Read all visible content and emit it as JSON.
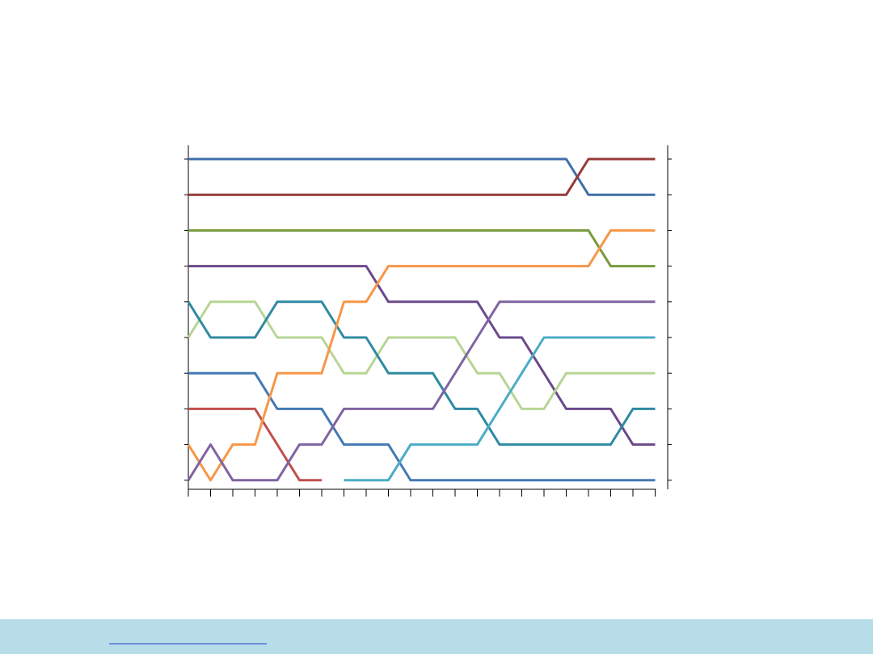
{
  "chart_data": {
    "type": "line",
    "title": "",
    "xlabel": "",
    "ylabel": "",
    "y_reversed": true,
    "ylim": [
      1,
      10
    ],
    "x": [
      1,
      2,
      3,
      4,
      5,
      6,
      7,
      8,
      9,
      10,
      11,
      12,
      13,
      14,
      15,
      16,
      17,
      18,
      19,
      20,
      21,
      22
    ],
    "grid": false,
    "legend": "none",
    "series": [
      {
        "color": "#3f6fa8",
        "values": [
          1,
          1,
          1,
          1,
          1,
          1,
          1,
          1,
          1,
          1,
          1,
          1,
          1,
          1,
          1,
          1,
          1,
          1,
          2,
          2,
          2,
          2
        ]
      },
      {
        "color": "#963a38",
        "values": [
          2,
          2,
          2,
          2,
          2,
          2,
          2,
          2,
          2,
          2,
          2,
          2,
          2,
          2,
          2,
          2,
          2,
          2,
          1,
          1,
          1,
          1
        ]
      },
      {
        "color": "#779a3e",
        "values": [
          3,
          3,
          3,
          3,
          3,
          3,
          3,
          3,
          3,
          3,
          3,
          3,
          3,
          3,
          3,
          3,
          3,
          3,
          3,
          4,
          4,
          4
        ]
      },
      {
        "color": "#6b4a8a",
        "values": [
          4,
          4,
          4,
          4,
          4,
          4,
          4,
          4,
          4,
          5,
          5,
          5,
          5,
          5,
          6,
          6,
          7,
          8,
          8,
          8,
          9,
          9
        ]
      },
      {
        "color": "#b7d594",
        "values": [
          6,
          5,
          5,
          5,
          6,
          6,
          6,
          7,
          7,
          6,
          6,
          6,
          6,
          7,
          7,
          8,
          8,
          7,
          7,
          7,
          7,
          7
        ]
      },
      {
        "color": "#2f8aa2",
        "values": [
          5,
          6,
          6,
          6,
          5,
          5,
          5,
          6,
          6,
          7,
          7,
          7,
          8,
          8,
          9,
          9,
          9,
          9,
          9,
          9,
          8,
          8
        ]
      },
      {
        "color": "#4479b4",
        "values": [
          7,
          7,
          7,
          7,
          8,
          8,
          8,
          9,
          9,
          9,
          10,
          10,
          10,
          10,
          10,
          10,
          10,
          10,
          10,
          10,
          10,
          10
        ]
      },
      {
        "color": "#c0504d",
        "values": [
          8,
          8,
          8,
          8,
          9,
          10,
          10,
          null,
          null,
          null,
          null,
          null,
          null,
          null,
          null,
          null,
          null,
          null,
          null,
          null,
          null,
          null
        ]
      },
      {
        "color": "#f79646",
        "values": [
          9,
          10,
          9,
          9,
          7,
          7,
          7,
          5,
          5,
          4,
          4,
          4,
          4,
          4,
          4,
          4,
          4,
          4,
          4,
          3,
          3,
          3
        ]
      },
      {
        "color": "#8064a2",
        "values": [
          10,
          9,
          10,
          10,
          10,
          9,
          9,
          8,
          8,
          8,
          8,
          8,
          7,
          6,
          5,
          5,
          5,
          5,
          5,
          5,
          5,
          5
        ]
      },
      {
        "color": "#4bacc6",
        "values": [
          null,
          null,
          null,
          null,
          null,
          null,
          null,
          10,
          10,
          10,
          9,
          9,
          9,
          9,
          8,
          7,
          6,
          6,
          6,
          6,
          6,
          6
        ]
      }
    ]
  },
  "footer": {
    "background": "#b7dde8",
    "link_text": ""
  }
}
